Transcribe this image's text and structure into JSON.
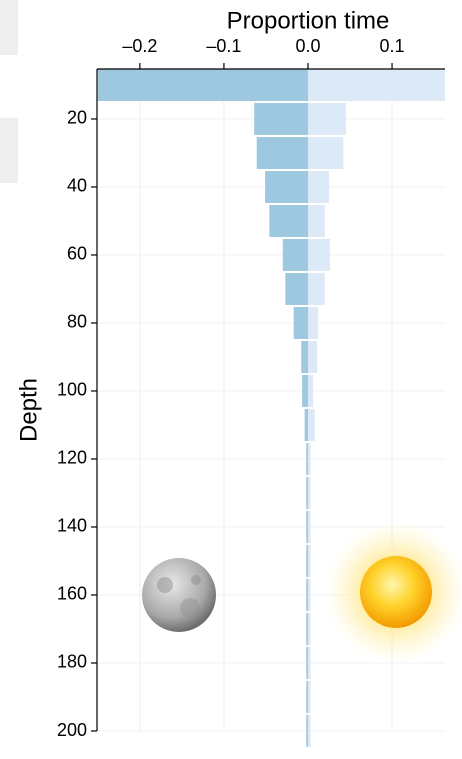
{
  "chart_data": {
    "type": "diverging-bar",
    "title": "Proportion time",
    "y_label": "Depth",
    "categories": [
      10,
      20,
      30,
      40,
      50,
      60,
      70,
      80,
      90,
      100,
      110,
      120,
      130,
      140,
      150,
      160,
      170,
      180,
      190,
      200
    ],
    "series": [
      {
        "color": "#9ec8e0",
        "values": [
          -0.25,
          -0.064,
          -0.061,
          -0.051,
          -0.046,
          -0.03,
          -0.027,
          -0.017,
          -0.008,
          -0.007,
          -0.004,
          -0.002,
          -0.002,
          -0.002,
          -0.002,
          -0.002,
          -0.002,
          -0.002,
          -0.002,
          -0.002
        ]
      },
      {
        "color": "#dce9f6",
        "values": [
          0.163,
          0.045,
          0.042,
          0.025,
          0.02,
          0.026,
          0.02,
          0.012,
          0.011,
          0.006,
          0.008,
          0.003,
          0.003,
          0.003,
          0.003,
          0.003,
          0.003,
          0.003,
          0.003,
          0.003
        ]
      }
    ],
    "xlim": [
      -0.251,
      0.163
    ],
    "xticks": [
      {
        "value": -0.2,
        "label": "–0.2"
      },
      {
        "value": -0.1,
        "label": "–0.1"
      },
      {
        "value": 0,
        "label": "0.0"
      },
      0.1
    ],
    "ylim": [
      5.3,
      200
    ],
    "yticks": [
      20,
      40,
      60,
      80,
      100,
      120,
      140,
      160,
      180,
      200
    ],
    "grid": true
  }
}
